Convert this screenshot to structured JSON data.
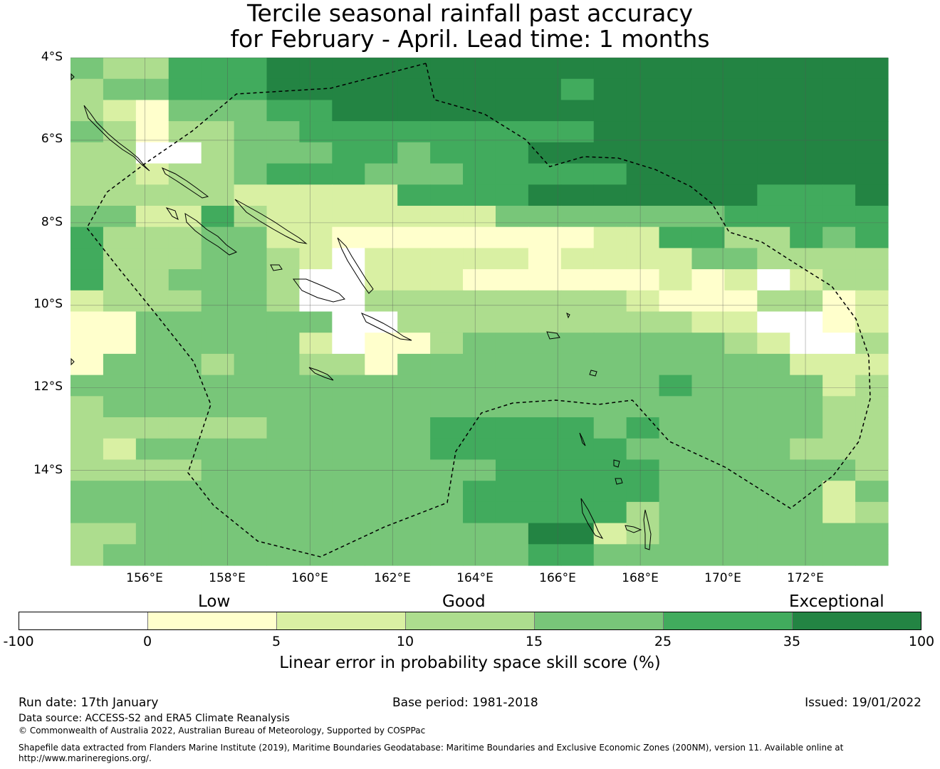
{
  "title": {
    "line1": "Tercile seasonal rainfall past accuracy",
    "line2": "for February - April. Lead time: 1 months"
  },
  "map": {
    "lat_labels": [
      "4°S",
      "6°S",
      "8°S",
      "10°S",
      "12°S",
      "14°S"
    ],
    "lon_labels": [
      "156°E",
      "158°E",
      "160°E",
      "162°E",
      "164°E",
      "166°E",
      "168°E",
      "170°E",
      "172°E"
    ],
    "lat_range": [
      -16.3,
      -4.0
    ],
    "lon_range": [
      154.2,
      174.0
    ],
    "boundary": "dashed",
    "grid_codes": [
      "4335556666666666666666666",
      "3445556666666665666666666",
      "3214445566666666666666666",
      "4313344555555555666666666",
      "3300344455455566666666666",
      "3323345554445555566666666",
      "3333322222555566666665556",
      "4422532222222444444455555",
      "5333442211111111225533545",
      "5333443202222212222443333",
      "5334443002221111112120233",
      "2333443003333333321113312",
      "1144444400333333333220012",
      "1144444201134444444432003",
      "1444344331444444444444222",
      "4444444444444444445444423",
      "3444444444444444444444433",
      "3333334444455555454444433",
      "3244444444455555544444333",
      "3333444444444555554444443",
      "4444444444445555554444424",
      "4444444444445555534444423",
      "3344444444444466234444444",
      "3444444444444455444444444"
    ]
  },
  "legend": {
    "categories": [
      "Low",
      "Good",
      "Exceptional"
    ],
    "ticks": [
      "-100",
      "0",
      "5",
      "10",
      "15",
      "25",
      "35",
      "100"
    ],
    "colors": [
      "#ffffff",
      "#ffffcc",
      "#d9f0a3",
      "#addd8e",
      "#78c679",
      "#41ab5d",
      "#238443"
    ],
    "label": "Linear error in probability space skill score (%)"
  },
  "footer": {
    "run_date": "Run date: 17th January",
    "base_period": "Base period: 1981-2018",
    "issued": "Issued: 19/01/2022",
    "data_source": "Data source: ACCESS-S2 and ERA5 Climate Reanalysis",
    "copyright": "© Commonwealth of Australia 2022, Australian Bureau of Meteorology, Supported by COSPPac",
    "shapefile_1": "Shapefile data extracted from Flanders Marine Institute (2019), Maritime Boundaries Geodatabase: Maritime Boundaries and Exclusive Economic Zones (200NM), version 11. Available online at",
    "shapefile_2": "http://www.marineregions.org/."
  }
}
